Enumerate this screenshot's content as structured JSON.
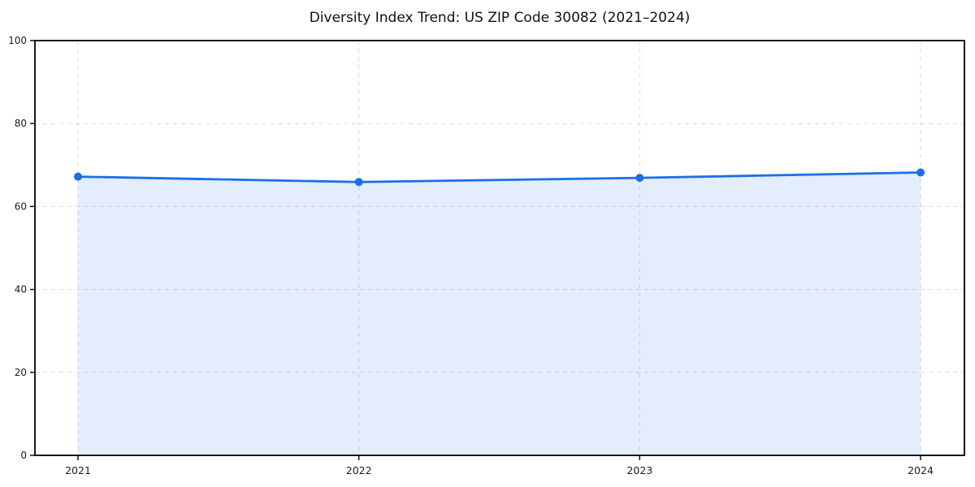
{
  "figure": {
    "background": "#ffffff"
  },
  "chart_data": {
    "type": "area",
    "title": "Diversity Index Trend: US ZIP Code 30082 (2021–2024)",
    "series_name": "Diversity Index",
    "x": [
      2021,
      2022,
      2023,
      2024
    ],
    "values": [
      67.2,
      65.9,
      66.9,
      68.2
    ],
    "xlabel": "",
    "ylabel": "",
    "ylim": [
      0,
      100
    ],
    "yticks": [
      0,
      20,
      40,
      60,
      80,
      100
    ],
    "xticks": [
      2021,
      2022,
      2023,
      2024
    ],
    "xtick_labels": [
      "2021",
      "2022",
      "2023",
      "2024"
    ],
    "ytick_labels": [
      "0",
      "20",
      "40",
      "60",
      "80",
      "100"
    ],
    "grid": true,
    "grid_style": "dashed",
    "legend": "none",
    "colors": {
      "line": "#1a6fe8",
      "marker": "#1a6fe8",
      "fill": "#1a6fe8",
      "fill_opacity": 0.12,
      "grid": "#d9d9d9",
      "spine": "#000000",
      "tick_label": "#1a1a1a",
      "title": "#111111"
    }
  }
}
